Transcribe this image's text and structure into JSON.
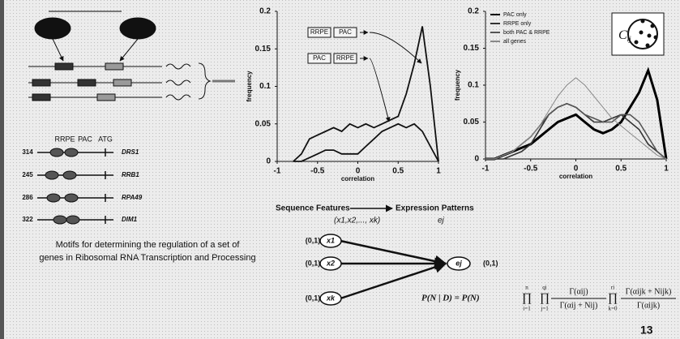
{
  "chart_data": [
    {
      "type": "line",
      "ylabel": "frequency",
      "xlabel": "correlation",
      "xlim": [
        -1,
        1
      ],
      "xticks": [
        -1,
        -0.5,
        0,
        0.5,
        1
      ],
      "ylim": [
        0,
        0.2
      ],
      "yticks": [
        0,
        0.05,
        0.1,
        0.15,
        0.2
      ],
      "x": [
        -0.8,
        -0.7,
        -0.6,
        -0.5,
        -0.4,
        -0.3,
        -0.2,
        -0.1,
        0,
        0.1,
        0.2,
        0.3,
        0.4,
        0.5,
        0.6,
        0.7,
        0.8,
        0.9,
        1
      ],
      "series": [
        {
          "color": "#111111",
          "values": [
            0,
            0.01,
            0.03,
            0.035,
            0.04,
            0.045,
            0.04,
            0.05,
            0.045,
            0.05,
            0.045,
            0.05,
            0.055,
            0.06,
            0.09,
            0.13,
            0.18,
            0.1,
            0
          ]
        },
        {
          "color": "#111111",
          "values": [
            0,
            0,
            0.005,
            0.01,
            0.015,
            0.015,
            0.01,
            0.01,
            0.01,
            0.02,
            0.03,
            0.04,
            0.045,
            0.05,
            0.045,
            0.05,
            0.04,
            0.02,
            0
          ]
        }
      ],
      "annotations": [
        [
          "RRPE",
          "PAC"
        ],
        [
          "PAC",
          "RRPE"
        ]
      ]
    },
    {
      "type": "line",
      "ylabel": "frequency",
      "xlabel": "correlation",
      "xlim": [
        -1,
        1
      ],
      "xticks": [
        -1,
        -0.5,
        0,
        0.5,
        1
      ],
      "ylim": [
        0,
        0.2
      ],
      "yticks": [
        0,
        0.05,
        0.1,
        0.15,
        0.2
      ],
      "legend": "upper left",
      "inset": {
        "base": "C",
        "sub": "ij"
      },
      "x": [
        -1,
        -0.9,
        -0.8,
        -0.7,
        -0.6,
        -0.5,
        -0.4,
        -0.3,
        -0.2,
        -0.1,
        0,
        0.1,
        0.2,
        0.3,
        0.4,
        0.5,
        0.6,
        0.7,
        0.8,
        0.9,
        1
      ],
      "series": [
        {
          "name": "PAC only",
          "color": "#000000",
          "values": [
            0,
            0,
            0.005,
            0.01,
            0.015,
            0.02,
            0.03,
            0.04,
            0.05,
            0.055,
            0.06,
            0.05,
            0.04,
            0.035,
            0.04,
            0.05,
            0.07,
            0.09,
            0.12,
            0.08,
            0
          ]
        },
        {
          "name": "RRPE only",
          "color": "#333333",
          "values": [
            0,
            0,
            0,
            0.005,
            0.01,
            0.02,
            0.04,
            0.06,
            0.07,
            0.075,
            0.07,
            0.06,
            0.05,
            0.05,
            0.055,
            0.06,
            0.05,
            0.04,
            0.02,
            0.01,
            0
          ]
        },
        {
          "name": "both PAC & RRPE",
          "color": "#555555",
          "values": [
            0,
            0,
            0.005,
            0.01,
            0.02,
            0.03,
            0.045,
            0.06,
            0.07,
            0.075,
            0.07,
            0.06,
            0.055,
            0.05,
            0.05,
            0.06,
            0.06,
            0.05,
            0.03,
            0.01,
            0
          ]
        },
        {
          "name": "all genes",
          "color": "#888888",
          "values": [
            0,
            0,
            0.005,
            0.01,
            0.02,
            0.03,
            0.045,
            0.065,
            0.085,
            0.1,
            0.11,
            0.1,
            0.085,
            0.07,
            0.055,
            0.045,
            0.035,
            0.025,
            0.015,
            0.005,
            0
          ]
        }
      ]
    }
  ],
  "motifs": {
    "header": [
      "RRPE",
      "PAC",
      "ATG"
    ],
    "rows": [
      [
        "314",
        "DRS1"
      ],
      [
        "245",
        "RRB1"
      ],
      [
        "286",
        "RPA49"
      ],
      [
        "322",
        "DIM1"
      ]
    ]
  },
  "caption": [
    "Motifs for determining the regulation of a set of",
    "genes in Ribosomal RNA Transcription and Processing"
  ],
  "network": {
    "left_title": "Sequence Features",
    "right_title": "Expression Patterns",
    "left_sub": "(x1,x2,..., xk)",
    "right_sub": "ej",
    "inputs": [
      {
        "label": "x1",
        "range": "(0,1)"
      },
      {
        "label": "x2",
        "range": "(0,1)"
      },
      {
        "label": "xk",
        "range": "(0,1)"
      }
    ],
    "output": {
      "label": "ej",
      "range": "(0,1)"
    }
  },
  "formula": {
    "lhs": "P(N | D) = P(N)",
    "products": [
      {
        "symbol": "∏",
        "lower": "i=1",
        "upper": "n"
      },
      {
        "symbol": "∏",
        "lower": "j=1",
        "upper": "qi"
      },
      {
        "symbol": "∏",
        "lower": "k=0",
        "upper": "ri"
      }
    ],
    "fractions": [
      {
        "num": "Γ(αij)",
        "den": "Γ(αij + Nij)"
      },
      {
        "num": "Γ(αijk + Nijk)",
        "den": "Γ(αijk)"
      }
    ]
  },
  "page_number": "13"
}
